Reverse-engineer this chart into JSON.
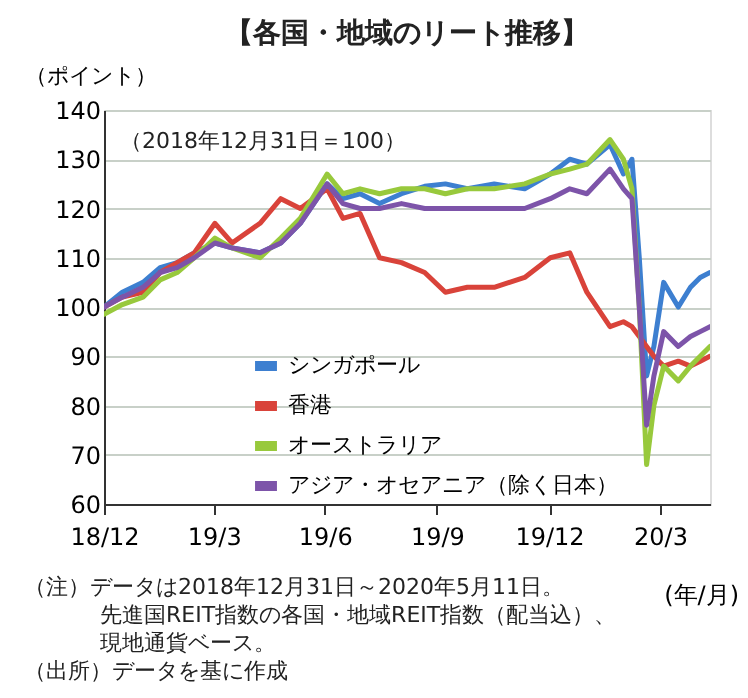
{
  "chart_data": {
    "type": "line",
    "title": "【各国・地域のリート推移】",
    "ylabel": "（ポイント）",
    "xlabel": "(年/月)",
    "annotations": [
      "（2018年12月31日＝100）",
      "（注）データは2018年12月31日～2020年5月11日。",
      "先進国REIT指数の各国・地域REIT指数（配当込）、",
      "現地通貨ベース。",
      "（出所）データを基に作成"
    ],
    "xlim": [
      "2018-12-31",
      "2020-05-11"
    ],
    "xticks": [
      {
        "value": "2018-12-31",
        "label": "18/12"
      },
      {
        "value": "2019-03-31",
        "label": "19/3"
      },
      {
        "value": "2019-06-30",
        "label": "19/6"
      },
      {
        "value": "2019-09-30",
        "label": "19/9"
      },
      {
        "value": "2019-12-31",
        "label": "19/12"
      },
      {
        "value": "2020-03-31",
        "label": "20/3"
      }
    ],
    "ylim": [
      60,
      140
    ],
    "yticks": [
      60,
      70,
      80,
      90,
      100,
      110,
      120,
      130,
      140
    ],
    "grid": "y",
    "legend": "bottom",
    "line_style": "solid",
    "marker": "none",
    "x": [
      "2018-12-31",
      "2019-01-15",
      "2019-02-01",
      "2019-02-15",
      "2019-03-01",
      "2019-03-15",
      "2019-04-01",
      "2019-04-15",
      "2019-05-08",
      "2019-05-25",
      "2019-06-10",
      "2019-07-02",
      "2019-07-15",
      "2019-07-29",
      "2019-08-14",
      "2019-09-01",
      "2019-09-20",
      "2019-10-07",
      "2019-10-25",
      "2019-11-16",
      "2019-12-11",
      "2020-01-01",
      "2020-01-17",
      "2020-01-31",
      "2020-02-19",
      "2020-03-01",
      "2020-03-08",
      "2020-03-14",
      "2020-03-20",
      "2020-03-26",
      "2020-04-03",
      "2020-04-15",
      "2020-04-25",
      "2020-05-03",
      "2020-05-11"
    ],
    "series": [
      {
        "name": "シンガポール",
        "color": "#3d7fd0",
        "values": [
          100,
          103,
          105,
          108,
          109,
          111,
          113,
          112,
          111,
          113,
          117,
          125,
          122,
          123,
          121,
          123,
          124.5,
          125,
          124,
          125,
          124,
          127,
          130,
          129,
          133,
          127,
          130,
          110,
          86,
          92,
          105,
          100,
          104,
          106,
          107
        ]
      },
      {
        "name": "香港",
        "color": "#d9433a",
        "values": [
          100,
          102,
          103,
          107,
          109,
          111,
          117,
          113,
          117,
          122,
          120,
          124,
          118,
          119,
          110,
          109,
          107,
          103,
          104,
          104,
          106,
          110,
          111,
          103,
          96,
          97,
          96,
          94,
          92,
          90,
          88,
          89,
          88,
          89,
          90
        ]
      },
      {
        "name": "オーストラリア",
        "color": "#98c93c",
        "values": [
          98.5,
          100.5,
          102,
          105.5,
          107,
          110,
          114,
          112,
          110,
          114,
          118,
          127,
          123,
          124,
          123,
          124,
          124,
          123,
          124,
          124,
          125,
          127,
          128,
          129,
          134,
          130,
          124,
          100,
          68,
          80,
          88,
          85,
          88,
          90,
          92
        ]
      },
      {
        "name": "アジア・オセアニア（除く日本）",
        "color": "#7d54a9",
        "values": [
          100,
          102,
          104,
          107,
          108,
          110,
          113,
          112,
          111,
          113,
          117,
          125,
          121,
          120,
          120,
          121,
          120,
          120,
          120,
          120,
          120,
          122,
          124,
          123,
          128,
          124,
          122,
          100,
          76,
          86,
          95,
          92,
          94,
          95,
          96
        ]
      }
    ]
  }
}
